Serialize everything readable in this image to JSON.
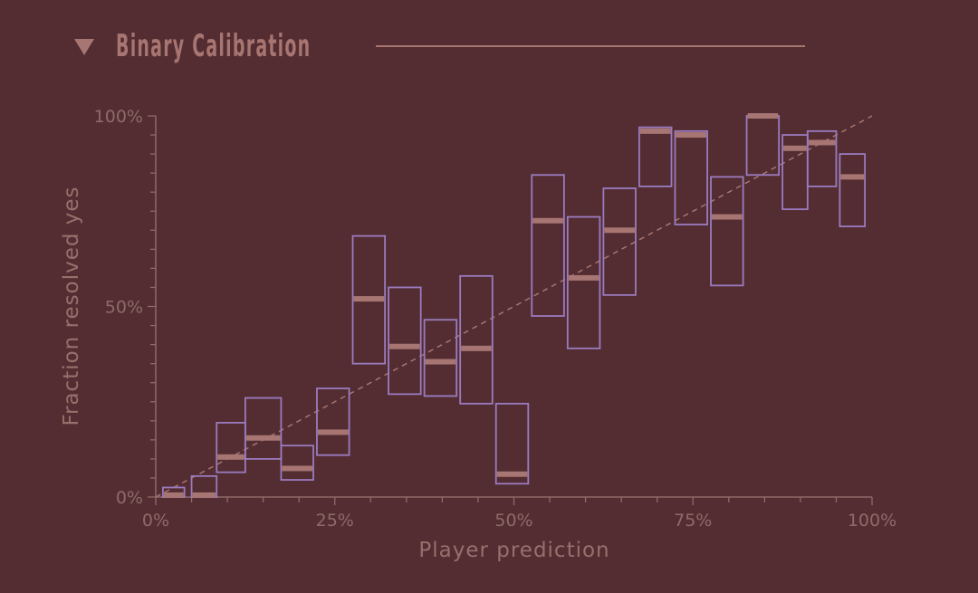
{
  "header": {
    "title": "Binary Calibration",
    "collapse_icon": "triangle-down-icon"
  },
  "colors": {
    "background": "#532d31",
    "accent": "#a77572",
    "box_stroke": "#9b7bc0",
    "median_bar": "#a77572",
    "axis": "#8f6a69",
    "diagonal": "#a77572"
  },
  "chart_data": {
    "type": "box",
    "xlabel": "Player prediction",
    "ylabel": "Fraction resolved yes",
    "xlim": [
      0,
      100
    ],
    "ylim": [
      0,
      100
    ],
    "x_ticks": [
      "0%",
      "25%",
      "50%",
      "75%",
      "100%"
    ],
    "y_ticks": [
      "0%",
      "50%",
      "100%"
    ],
    "reference_line": "y = x (dashed diagonal)",
    "bins": [
      {
        "x0": 1,
        "x1": 4,
        "low": 0,
        "high": 2.5,
        "mid": 0.5
      },
      {
        "x0": 5,
        "x1": 8.5,
        "low": 0,
        "high": 5.5,
        "mid": 0.5
      },
      {
        "x0": 8.5,
        "x1": 12.5,
        "low": 6.5,
        "high": 19.5,
        "mid": 10.5
      },
      {
        "x0": 12.5,
        "x1": 17.5,
        "low": 10,
        "high": 26,
        "mid": 15.5
      },
      {
        "x0": 17.5,
        "x1": 22,
        "low": 4.5,
        "high": 13.5,
        "mid": 7.5
      },
      {
        "x0": 22.5,
        "x1": 27,
        "low": 11,
        "high": 28.5,
        "mid": 17
      },
      {
        "x0": 27.5,
        "x1": 32,
        "low": 35,
        "high": 68.5,
        "mid": 52
      },
      {
        "x0": 32.5,
        "x1": 37,
        "low": 27,
        "high": 55,
        "mid": 39.5
      },
      {
        "x0": 37.5,
        "x1": 42,
        "low": 26.5,
        "high": 46.5,
        "mid": 35.5
      },
      {
        "x0": 42.5,
        "x1": 47,
        "low": 24.5,
        "high": 58,
        "mid": 39
      },
      {
        "x0": 47.5,
        "x1": 52,
        "low": 3.5,
        "high": 24.5,
        "mid": 6
      },
      {
        "x0": 52.5,
        "x1": 57,
        "low": 47.5,
        "high": 84.5,
        "mid": 72.5
      },
      {
        "x0": 57.5,
        "x1": 62,
        "low": 39,
        "high": 73.5,
        "mid": 57.5
      },
      {
        "x0": 62.5,
        "x1": 67,
        "low": 53,
        "high": 81,
        "mid": 70
      },
      {
        "x0": 67.5,
        "x1": 72,
        "low": 81.5,
        "high": 97,
        "mid": 96
      },
      {
        "x0": 72.5,
        "x1": 77,
        "low": 71.5,
        "high": 96,
        "mid": 95
      },
      {
        "x0": 77.5,
        "x1": 82,
        "low": 55.5,
        "high": 84,
        "mid": 73.5
      },
      {
        "x0": 82.5,
        "x1": 87,
        "low": 84.5,
        "high": 100,
        "mid": 100
      },
      {
        "x0": 87.5,
        "x1": 91,
        "low": 75.5,
        "high": 95,
        "mid": 91.5
      },
      {
        "x0": 91,
        "x1": 95,
        "low": 81.5,
        "high": 96,
        "mid": 93
      },
      {
        "x0": 95.5,
        "x1": 99,
        "low": 71,
        "high": 90,
        "mid": 84
      }
    ]
  }
}
